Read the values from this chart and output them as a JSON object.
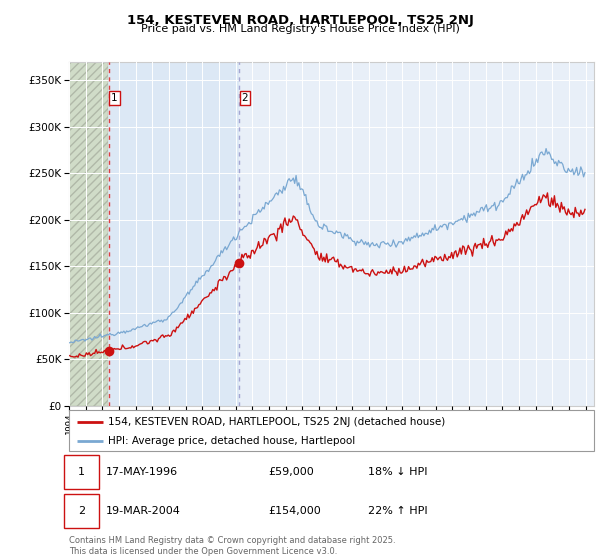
{
  "title1": "154, KESTEVEN ROAD, HARTLEPOOL, TS25 2NJ",
  "title2": "Price paid vs. HM Land Registry's House Price Index (HPI)",
  "xlim_start": 1994.0,
  "xlim_end": 2025.5,
  "ylim_min": 0,
  "ylim_max": 370000,
  "hpi_color": "#7aa8d2",
  "price_color": "#cc1111",
  "vline1_color": "#dd2222",
  "vline2_color": "#9999cc",
  "sale1_x": 1996.37,
  "sale1_y": 59000,
  "sale1_label": "1",
  "sale1_date": "17-MAY-1996",
  "sale1_price": "£59,000",
  "sale1_hpi": "18% ↓ HPI",
  "sale2_x": 2004.21,
  "sale2_y": 154000,
  "sale2_label": "2",
  "sale2_date": "19-MAR-2004",
  "sale2_price": "£154,000",
  "sale2_hpi": "22% ↑ HPI",
  "legend_line1": "154, KESTEVEN ROAD, HARTLEPOOL, TS25 2NJ (detached house)",
  "legend_line2": "HPI: Average price, detached house, Hartlepool",
  "footnote": "Contains HM Land Registry data © Crown copyright and database right 2025.\nThis data is licensed under the Open Government Licence v3.0.",
  "bg_plot": "#e8eff8",
  "bg_between": "#dce8f5",
  "bg_hatch": "#d0dcc8",
  "yticks": [
    0,
    50000,
    100000,
    150000,
    200000,
    250000,
    300000,
    350000
  ]
}
